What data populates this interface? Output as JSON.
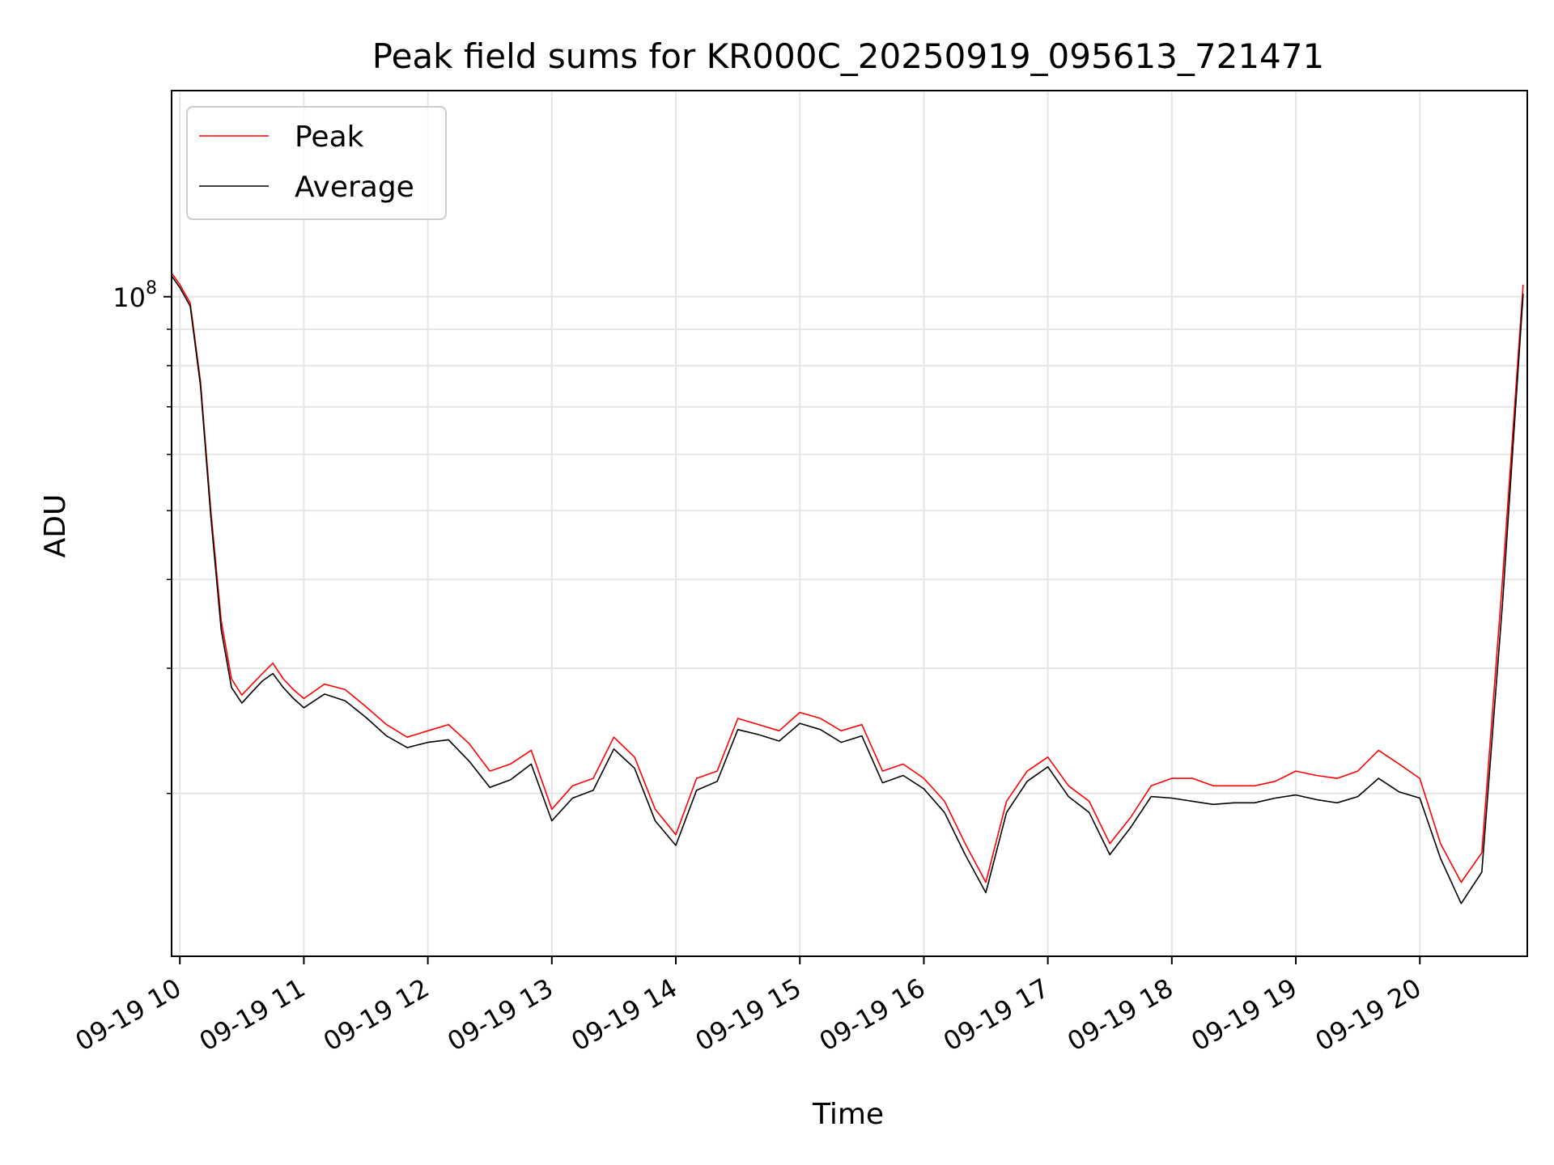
{
  "chart_data": {
    "type": "line",
    "title": "Peak field sums for KR000C_20250919_095613_721471",
    "xlabel": "Time",
    "ylabel": "ADU",
    "x_scale": "time",
    "y_scale": "log",
    "xlim": [
      "2025-09-19T09:56",
      "2025-09-19T20:52"
    ],
    "ylim": [
      11800000,
      195000000
    ],
    "x_ticks": [
      "09-19 10",
      "09-19 11",
      "09-19 12",
      "09-19 13",
      "09-19 14",
      "09-19 15",
      "09-19 16",
      "09-19 17",
      "09-19 18",
      "09-19 19",
      "09-19 20"
    ],
    "x_tick_hours": [
      10,
      11,
      12,
      13,
      14,
      15,
      16,
      17,
      18,
      19,
      20
    ],
    "y_tick_label": {
      "base": "10",
      "exponent": "8"
    },
    "grid": true,
    "legend": {
      "position": "top-left",
      "entries": [
        "Peak",
        "Average"
      ]
    },
    "colors": {
      "Peak": "#ff0000",
      "Average": "#000000"
    },
    "series": [
      {
        "name": "Peak",
        "color": "#ff0000",
        "x": [
          "09:56",
          "10:00",
          "10:05",
          "10:10",
          "10:15",
          "10:20",
          "10:25",
          "10:30",
          "10:35",
          "10:40",
          "10:45",
          "10:50",
          "10:55",
          "11:00",
          "11:10",
          "11:20",
          "11:30",
          "11:40",
          "11:50",
          "12:00",
          "12:10",
          "12:20",
          "12:30",
          "12:40",
          "12:50",
          "13:00",
          "13:10",
          "13:20",
          "13:30",
          "13:40",
          "13:50",
          "14:00",
          "14:10",
          "14:20",
          "14:30",
          "14:40",
          "14:50",
          "15:00",
          "15:10",
          "15:20",
          "15:30",
          "15:40",
          "15:50",
          "16:00",
          "16:10",
          "16:20",
          "16:30",
          "16:40",
          "16:50",
          "17:00",
          "17:10",
          "17:20",
          "17:30",
          "17:40",
          "17:50",
          "18:00",
          "18:10",
          "18:20",
          "18:30",
          "18:40",
          "18:50",
          "19:00",
          "19:10",
          "19:20",
          "19:30",
          "19:40",
          "19:50",
          "20:00",
          "20:10",
          "20:20",
          "20:30",
          "20:40",
          "20:50"
        ],
        "y": [
          108000000,
          104000000,
          98000000,
          76000000,
          50000000,
          35000000,
          29000000,
          27500000,
          28500000,
          29500000,
          30500000,
          29000000,
          28000000,
          27200000,
          28500000,
          28000000,
          26500000,
          25000000,
          24000000,
          24500000,
          25000000,
          23500000,
          21500000,
          22000000,
          23000000,
          19000000,
          20500000,
          21000000,
          24000000,
          22500000,
          19000000,
          17500000,
          21000000,
          21500000,
          25500000,
          25000000,
          24500000,
          26000000,
          25500000,
          24500000,
          25000000,
          21500000,
          22000000,
          21000000,
          19500000,
          17000000,
          15000000,
          19500000,
          21500000,
          22500000,
          20500000,
          19500000,
          17000000,
          18500000,
          20500000,
          21000000,
          21000000,
          20500000,
          20500000,
          20500000,
          20800000,
          21500000,
          21200000,
          21000000,
          21500000,
          23000000,
          22000000,
          21000000,
          17000000,
          15000000,
          16500000,
          40000000,
          104000000
        ]
      },
      {
        "name": "Average",
        "color": "#000000",
        "x": [
          "09:56",
          "10:00",
          "10:05",
          "10:10",
          "10:15",
          "10:20",
          "10:25",
          "10:30",
          "10:35",
          "10:40",
          "10:45",
          "10:50",
          "10:55",
          "11:00",
          "11:10",
          "11:20",
          "11:30",
          "11:40",
          "11:50",
          "12:00",
          "12:10",
          "12:20",
          "12:30",
          "12:40",
          "12:50",
          "13:00",
          "13:10",
          "13:20",
          "13:30",
          "13:40",
          "13:50",
          "14:00",
          "14:10",
          "14:20",
          "14:30",
          "14:40",
          "14:50",
          "15:00",
          "15:10",
          "15:20",
          "15:30",
          "15:40",
          "15:50",
          "16:00",
          "16:10",
          "16:20",
          "16:30",
          "16:40",
          "16:50",
          "17:00",
          "17:10",
          "17:20",
          "17:30",
          "17:40",
          "17:50",
          "18:00",
          "18:10",
          "18:20",
          "18:30",
          "18:40",
          "18:50",
          "19:00",
          "19:10",
          "19:20",
          "19:30",
          "19:40",
          "19:50",
          "20:00",
          "20:10",
          "20:20",
          "20:30",
          "20:40",
          "20:50"
        ],
        "y": [
          107000000,
          103000000,
          97000000,
          75000000,
          49000000,
          34000000,
          28200000,
          26800000,
          27800000,
          28800000,
          29500000,
          28200000,
          27200000,
          26400000,
          27600000,
          27000000,
          25600000,
          24100000,
          23200000,
          23600000,
          23800000,
          22200000,
          20400000,
          20900000,
          22000000,
          18300000,
          19700000,
          20200000,
          23100000,
          21700000,
          18300000,
          16900000,
          20200000,
          20800000,
          24600000,
          24200000,
          23700000,
          25100000,
          24600000,
          23600000,
          24100000,
          20700000,
          21200000,
          20300000,
          18800000,
          16400000,
          14500000,
          18800000,
          20800000,
          21800000,
          19800000,
          18800000,
          16400000,
          17900000,
          19800000,
          19700000,
          19500000,
          19300000,
          19400000,
          19400000,
          19700000,
          19900000,
          19600000,
          19400000,
          19800000,
          21000000,
          20100000,
          19700000,
          16200000,
          14000000,
          15500000,
          37000000,
          101000000
        ]
      }
    ]
  }
}
